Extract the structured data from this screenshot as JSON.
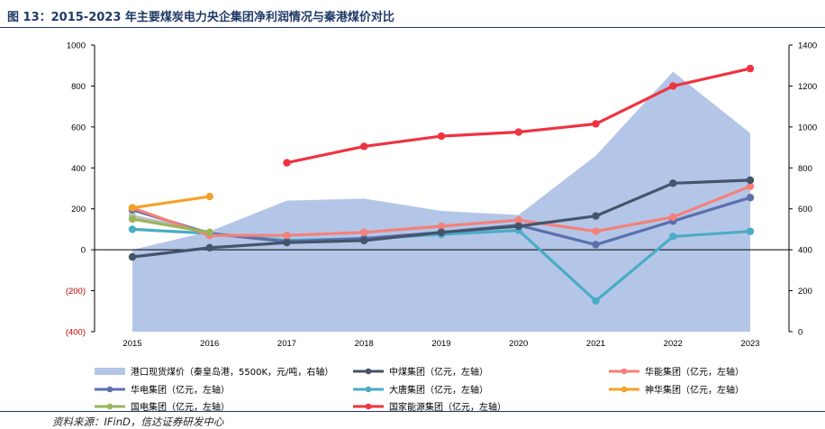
{
  "figure": {
    "title": "图 13：2015-2023 年主要煤炭电力央企集团净利润情况与秦港煤价对比",
    "source": "资料来源：IFinD，信达证券研发中心"
  },
  "chart_data": {
    "type": "line",
    "categories": [
      "2015",
      "2016",
      "2017",
      "2018",
      "2019",
      "2020",
      "2021",
      "2022",
      "2023"
    ],
    "left_axis": {
      "ylim": [
        -400,
        1000
      ],
      "ticks": [
        "1000",
        "800",
        "600",
        "400",
        "200",
        "0",
        "(200)",
        "(400)"
      ],
      "tick_values": [
        1000,
        800,
        600,
        400,
        200,
        0,
        -200,
        -400
      ]
    },
    "right_axis": {
      "ylim": [
        0,
        1400
      ],
      "ticks": [
        "1400",
        "1200",
        "1000",
        "800",
        "600",
        "400",
        "200",
        "0"
      ],
      "tick_values": [
        1400,
        1200,
        1000,
        800,
        600,
        400,
        200,
        0
      ]
    },
    "grid": false,
    "legend_position": "bottom",
    "area_series": {
      "name": "港口现货煤价（秦皇岛港，5500K，元/吨，右轴）",
      "color": "#b4c6e7",
      "values": [
        400,
        490,
        640,
        650,
        590,
        570,
        860,
        1270,
        970
      ]
    },
    "series": [
      {
        "name": "中煤集团（亿元，左轴）",
        "color": "#44546a",
        "values": [
          -35,
          10,
          35,
          45,
          85,
          115,
          165,
          325,
          340
        ]
      },
      {
        "name": "华能集团（亿元，左轴）",
        "color": "#f4817a",
        "values": [
          205,
          70,
          70,
          85,
          115,
          145,
          90,
          160,
          310
        ]
      },
      {
        "name": "华电集团（亿元，左轴）",
        "color": "#5b6fad",
        "values": [
          195,
          80,
          40,
          55,
          85,
          120,
          25,
          140,
          255
        ]
      },
      {
        "name": "大唐集团（亿元，左轴）",
        "color": "#4bacc6",
        "values": [
          100,
          80,
          45,
          55,
          75,
          95,
          -250,
          65,
          90
        ]
      },
      {
        "name": "神华集团（亿元，左轴）",
        "color": "#f4a12a",
        "values": [
          205,
          260,
          null,
          null,
          null,
          null,
          null,
          null,
          null
        ]
      },
      {
        "name": "国电集团（亿元，左轴）",
        "color": "#9ab55a",
        "values": [
          150,
          85,
          null,
          null,
          null,
          null,
          null,
          null,
          null
        ]
      },
      {
        "name": "国家能源集团（亿元，左轴）",
        "color": "#ef3340",
        "values": [
          null,
          null,
          425,
          505,
          555,
          575,
          615,
          800,
          885
        ]
      }
    ],
    "silver_line": {
      "color": "#c0c0c0",
      "values": [
        165,
        85
      ]
    }
  }
}
